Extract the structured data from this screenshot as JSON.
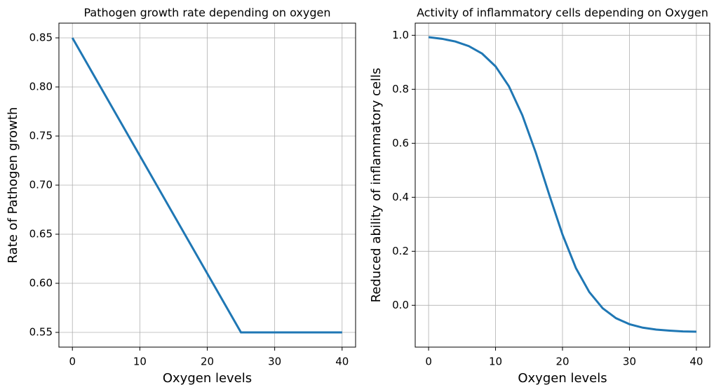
{
  "chart_data": [
    {
      "type": "line",
      "title": "Pathogen growth rate depending on oxygen",
      "xlabel": "Oxygen levels",
      "ylabel": "Rate of Pathogen growth",
      "x": [
        0,
        25,
        40
      ],
      "values": [
        0.85,
        0.55,
        0.55
      ],
      "color": "#1f77b4",
      "xlim": [
        -2,
        42
      ],
      "ylim": [
        0.535,
        0.865
      ],
      "xticks": [
        0,
        10,
        20,
        30,
        40
      ],
      "yticks": [
        0.55,
        {
          "value": 0.6,
          "label": "0.60"
        },
        0.65,
        {
          "value": 0.7,
          "label": "0.70"
        },
        0.75,
        {
          "value": 0.8,
          "label": "0.80"
        },
        0.85
      ],
      "grid": true
    },
    {
      "type": "line",
      "title": "Activity of inflammatory cells depending on Oxygen",
      "xlabel": "Oxygen levels",
      "ylabel": "Reduced ability of inflammatory cells",
      "x": [
        0,
        2,
        4,
        6,
        8,
        10,
        12,
        14,
        16,
        18,
        20,
        22,
        24,
        26,
        28,
        30,
        32,
        34,
        36,
        38,
        40
      ],
      "values": [
        0.993,
        0.987,
        0.977,
        0.96,
        0.932,
        0.885,
        0.811,
        0.704,
        0.566,
        0.411,
        0.262,
        0.138,
        0.049,
        -0.011,
        -0.048,
        -0.07,
        -0.083,
        -0.09,
        -0.094,
        -0.097,
        -0.098
      ],
      "color": "#1f77b4",
      "xlim": [
        -2,
        42
      ],
      "ylim": [
        -0.155,
        1.045
      ],
      "xticks": [
        0,
        10,
        20,
        30,
        40
      ],
      "yticks": [
        {
          "value": 0,
          "label": "0.0"
        },
        0.2,
        0.4,
        0.6,
        0.8,
        {
          "value": 1,
          "label": "1.0"
        }
      ],
      "grid": true
    }
  ]
}
